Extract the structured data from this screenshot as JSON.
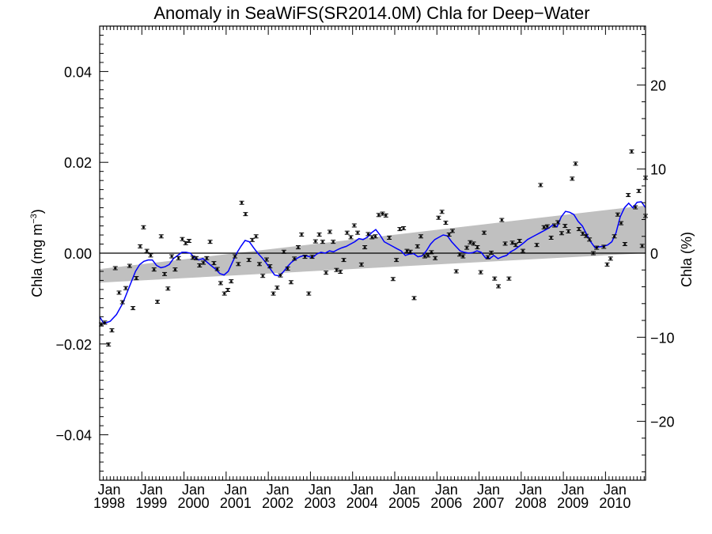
{
  "chart_data": {
    "type": "scatter",
    "title": "Anomaly in SeaWiFS(SR2014.0M) Chla for Deep−Water",
    "ylabel_left": "Chla (mg m",
    "ylabel_left_sup": "−3",
    "ylabel_left_close": ")",
    "ylabel_right": "Chla (%)",
    "xlim": [
      1998.0,
      2010.95
    ],
    "ylim": [
      -0.05,
      0.05
    ],
    "ylim_right": [
      -27,
      27
    ],
    "grid": false,
    "legend": "none",
    "x_ticks": [
      {
        "value": 1998.0,
        "month": "Jan",
        "year": "1998"
      },
      {
        "value": 1999.0,
        "month": "Jan",
        "year": "1999"
      },
      {
        "value": 2000.0,
        "month": "Jan",
        "year": "2000"
      },
      {
        "value": 2001.0,
        "month": "Jan",
        "year": "2001"
      },
      {
        "value": 2002.0,
        "month": "Jan",
        "year": "2002"
      },
      {
        "value": 2003.0,
        "month": "Jan",
        "year": "2003"
      },
      {
        "value": 2004.0,
        "month": "Jan",
        "year": "2004"
      },
      {
        "value": 2005.0,
        "month": "Jan",
        "year": "2005"
      },
      {
        "value": 2006.0,
        "month": "Jan",
        "year": "2006"
      },
      {
        "value": 2007.0,
        "month": "Jan",
        "year": "2007"
      },
      {
        "value": 2008.0,
        "month": "Jan",
        "year": "2008"
      },
      {
        "value": 2009.0,
        "month": "Jan",
        "year": "2009"
      },
      {
        "value": 2010.0,
        "month": "Jan",
        "year": "2010"
      }
    ],
    "y_ticks_left": [
      {
        "value": 0.04,
        "label": "0.04"
      },
      {
        "value": 0.02,
        "label": "0.02"
      },
      {
        "value": 0.0,
        "label": "0.00"
      },
      {
        "value": -0.02,
        "label": "−0.02"
      },
      {
        "value": -0.04,
        "label": "−0.04"
      }
    ],
    "y_ticks_right": [
      {
        "value": 20,
        "label": "20"
      },
      {
        "value": 10,
        "label": "10"
      },
      {
        "value": 0,
        "label": "0"
      },
      {
        "value": -10,
        "label": "−10"
      },
      {
        "value": -20,
        "label": "−20"
      }
    ],
    "trend_band": {
      "color": "#c0c0c0",
      "start": {
        "x": 1998.0,
        "low": -0.0065,
        "high": -0.0035
      },
      "end": {
        "x": 2010.95,
        "low": 0.0,
        "high": 0.0105
      }
    },
    "zero_line": 0.0,
    "colors": {
      "points": "#000000",
      "smoothed": "#0000ff",
      "band": "#c0c0c0"
    },
    "monthly_anomaly": [
      {
        "x": 1998.04,
        "y": -0.0157
      },
      {
        "x": 1998.12,
        "y": -0.0153
      },
      {
        "x": 1998.21,
        "y": -0.0201
      },
      {
        "x": 1998.29,
        "y": -0.017
      },
      {
        "x": 1998.37,
        "y": -0.0033
      },
      {
        "x": 1998.46,
        "y": -0.0087
      },
      {
        "x": 1998.54,
        "y": -0.0108
      },
      {
        "x": 1998.62,
        "y": -0.0077
      },
      {
        "x": 1998.71,
        "y": -0.0028
      },
      {
        "x": 1998.79,
        "y": -0.0121
      },
      {
        "x": 1998.87,
        "y": -0.0055
      },
      {
        "x": 1998.96,
        "y": 0.0015
      },
      {
        "x": 1999.04,
        "y": 0.0057
      },
      {
        "x": 1999.12,
        "y": 0.0005
      },
      {
        "x": 1999.21,
        "y": -0.0005
      },
      {
        "x": 1999.29,
        "y": -0.0036
      },
      {
        "x": 1999.37,
        "y": -0.0107
      },
      {
        "x": 1999.46,
        "y": 0.0037
      },
      {
        "x": 1999.54,
        "y": -0.0046
      },
      {
        "x": 1999.62,
        "y": -0.0078
      },
      {
        "x": 1999.71,
        "y": -0.0007
      },
      {
        "x": 1999.79,
        "y": -0.0036
      },
      {
        "x": 1999.87,
        "y": -0.0011
      },
      {
        "x": 1999.96,
        "y": 0.0031
      },
      {
        "x": 2000.04,
        "y": 0.0022
      },
      {
        "x": 2000.12,
        "y": 0.0027
      },
      {
        "x": 2000.21,
        "y": -0.001
      },
      {
        "x": 2000.29,
        "y": -0.0011
      },
      {
        "x": 2000.37,
        "y": -0.0027
      },
      {
        "x": 2000.46,
        "y": -0.0021
      },
      {
        "x": 2000.54,
        "y": -0.0011
      },
      {
        "x": 2000.62,
        "y": 0.0025
      },
      {
        "x": 2000.71,
        "y": -0.0022
      },
      {
        "x": 2000.79,
        "y": -0.0035
      },
      {
        "x": 2000.87,
        "y": -0.0066
      },
      {
        "x": 2000.96,
        "y": -0.0089
      },
      {
        "x": 2001.04,
        "y": -0.0081
      },
      {
        "x": 2001.12,
        "y": -0.0062
      },
      {
        "x": 2001.21,
        "y": -0.0007
      },
      {
        "x": 2001.29,
        "y": -0.0024
      },
      {
        "x": 2001.37,
        "y": 0.0111
      },
      {
        "x": 2001.46,
        "y": 0.0086
      },
      {
        "x": 2001.54,
        "y": -0.0015
      },
      {
        "x": 2001.62,
        "y": 0.0029
      },
      {
        "x": 2001.71,
        "y": 0.0037
      },
      {
        "x": 2001.79,
        "y": -0.0024
      },
      {
        "x": 2001.87,
        "y": -0.005
      },
      {
        "x": 2001.96,
        "y": -0.0014
      },
      {
        "x": 2002.04,
        "y": -0.0029
      },
      {
        "x": 2002.12,
        "y": -0.0089
      },
      {
        "x": 2002.21,
        "y": -0.0076
      },
      {
        "x": 2002.29,
        "y": -0.0049
      },
      {
        "x": 2002.37,
        "y": 0.0003
      },
      {
        "x": 2002.46,
        "y": -0.0034
      },
      {
        "x": 2002.54,
        "y": -0.0064
      },
      {
        "x": 2002.62,
        "y": -0.0012
      },
      {
        "x": 2002.71,
        "y": 0.0013
      },
      {
        "x": 2002.79,
        "y": 0.0041
      },
      {
        "x": 2002.87,
        "y": -0.0008
      },
      {
        "x": 2002.96,
        "y": -0.0089
      },
      {
        "x": 2003.04,
        "y": -0.0008
      },
      {
        "x": 2003.12,
        "y": 0.0026
      },
      {
        "x": 2003.21,
        "y": 0.0041
      },
      {
        "x": 2003.29,
        "y": 0.0025
      },
      {
        "x": 2003.37,
        "y": -0.0043
      },
      {
        "x": 2003.46,
        "y": 0.0047
      },
      {
        "x": 2003.54,
        "y": 0.0025
      },
      {
        "x": 2003.62,
        "y": -0.0037
      },
      {
        "x": 2003.71,
        "y": -0.0041
      },
      {
        "x": 2003.79,
        "y": -0.0015
      },
      {
        "x": 2003.87,
        "y": 0.0045
      },
      {
        "x": 2003.96,
        "y": 0.0035
      },
      {
        "x": 2004.04,
        "y": 0.0061
      },
      {
        "x": 2004.12,
        "y": 0.0045
      },
      {
        "x": 2004.21,
        "y": -0.0025
      },
      {
        "x": 2004.29,
        "y": 0.0013
      },
      {
        "x": 2004.37,
        "y": 0.0042
      },
      {
        "x": 2004.46,
        "y": 0.0035
      },
      {
        "x": 2004.54,
        "y": 0.0037
      },
      {
        "x": 2004.62,
        "y": 0.0084
      },
      {
        "x": 2004.71,
        "y": 0.0087
      },
      {
        "x": 2004.79,
        "y": 0.0083
      },
      {
        "x": 2004.87,
        "y": 0.0034
      },
      {
        "x": 2004.96,
        "y": -0.0057
      },
      {
        "x": 2005.04,
        "y": -0.0015
      },
      {
        "x": 2005.12,
        "y": 0.0053
      },
      {
        "x": 2005.21,
        "y": 0.0055
      },
      {
        "x": 2005.29,
        "y": 0.0005
      },
      {
        "x": 2005.37,
        "y": 0.0003
      },
      {
        "x": 2005.46,
        "y": -0.0099
      },
      {
        "x": 2005.54,
        "y": 0.0015
      },
      {
        "x": 2005.62,
        "y": 0.0037
      },
      {
        "x": 2005.71,
        "y": -0.0007
      },
      {
        "x": 2005.79,
        "y": -0.0005
      },
      {
        "x": 2005.87,
        "y": 0.0002
      },
      {
        "x": 2005.96,
        "y": -0.0011
      },
      {
        "x": 2006.04,
        "y": 0.0078
      },
      {
        "x": 2006.12,
        "y": 0.0091
      },
      {
        "x": 2006.21,
        "y": 0.0067
      },
      {
        "x": 2006.29,
        "y": 0.0041
      },
      {
        "x": 2006.37,
        "y": 0.0049
      },
      {
        "x": 2006.46,
        "y": -0.004
      },
      {
        "x": 2006.54,
        "y": -0.0003
      },
      {
        "x": 2006.62,
        "y": -0.0007
      },
      {
        "x": 2006.71,
        "y": 0.0012
      },
      {
        "x": 2006.79,
        "y": 0.0024
      },
      {
        "x": 2006.87,
        "y": 0.0021
      },
      {
        "x": 2006.96,
        "y": 0.0013
      },
      {
        "x": 2007.04,
        "y": -0.0042
      },
      {
        "x": 2007.12,
        "y": 0.0045
      },
      {
        "x": 2007.21,
        "y": -0.0009
      },
      {
        "x": 2007.29,
        "y": 0.0001
      },
      {
        "x": 2007.37,
        "y": -0.0056
      },
      {
        "x": 2007.46,
        "y": -0.0073
      },
      {
        "x": 2007.54,
        "y": 0.0073
      },
      {
        "x": 2007.62,
        "y": 0.0021
      },
      {
        "x": 2007.71,
        "y": -0.0056
      },
      {
        "x": 2007.79,
        "y": 0.0023
      },
      {
        "x": 2007.87,
        "y": 0.0018
      },
      {
        "x": 2007.96,
        "y": 0.0027
      },
      {
        "x": 2008.04,
        "y": 0.0005
      },
      {
        "x": 2008.37,
        "y": 0.0018
      },
      {
        "x": 2008.46,
        "y": 0.015
      },
      {
        "x": 2008.54,
        "y": 0.0057
      },
      {
        "x": 2008.62,
        "y": 0.0059
      },
      {
        "x": 2008.71,
        "y": 0.0034
      },
      {
        "x": 2008.79,
        "y": 0.0061
      },
      {
        "x": 2008.87,
        "y": 0.0068
      },
      {
        "x": 2008.96,
        "y": 0.0044
      },
      {
        "x": 2009.04,
        "y": 0.006
      },
      {
        "x": 2009.12,
        "y": 0.0048
      },
      {
        "x": 2009.21,
        "y": 0.0164
      },
      {
        "x": 2009.29,
        "y": 0.0197
      },
      {
        "x": 2009.37,
        "y": 0.0053
      },
      {
        "x": 2009.46,
        "y": 0.0043
      },
      {
        "x": 2009.54,
        "y": 0.0038
      },
      {
        "x": 2009.62,
        "y": 0.003
      },
      {
        "x": 2009.71,
        "y": 0.0
      },
      {
        "x": 2009.79,
        "y": 0.0012
      },
      {
        "x": 2009.96,
        "y": 0.0014
      },
      {
        "x": 2010.04,
        "y": -0.0025
      },
      {
        "x": 2010.12,
        "y": -0.0012
      },
      {
        "x": 2010.21,
        "y": 0.0037
      },
      {
        "x": 2010.29,
        "y": 0.0085
      },
      {
        "x": 2010.37,
        "y": 0.0066
      },
      {
        "x": 2010.46,
        "y": 0.002
      },
      {
        "x": 2010.54,
        "y": 0.0128
      },
      {
        "x": 2010.62,
        "y": 0.0224
      },
      {
        "x": 2010.71,
        "y": 0.0101
      },
      {
        "x": 2010.79,
        "y": 0.0137
      },
      {
        "x": 2010.87,
        "y": 0.0016
      },
      {
        "x": 2010.96,
        "y": 0.0082
      },
      {
        "x": 2011.04,
        "y": 0.0166
      }
    ],
    "smoothed": [
      {
        "x": 1998.0,
        "y": -0.014
      },
      {
        "x": 1998.1,
        "y": -0.0155
      },
      {
        "x": 1998.25,
        "y": -0.015
      },
      {
        "x": 1998.4,
        "y": -0.0135
      },
      {
        "x": 1998.55,
        "y": -0.011
      },
      {
        "x": 1998.7,
        "y": -0.0075
      },
      {
        "x": 1998.85,
        "y": -0.004
      },
      {
        "x": 1998.95,
        "y": -0.0025
      },
      {
        "x": 1999.05,
        "y": -0.0018
      },
      {
        "x": 1999.15,
        "y": -0.0015
      },
      {
        "x": 1999.25,
        "y": -0.0015
      },
      {
        "x": 1999.35,
        "y": -0.0027
      },
      {
        "x": 1999.45,
        "y": -0.0032
      },
      {
        "x": 1999.55,
        "y": -0.003
      },
      {
        "x": 1999.65,
        "y": -0.0025
      },
      {
        "x": 1999.75,
        "y": -0.0012
      },
      {
        "x": 1999.85,
        "y": -0.0005
      },
      {
        "x": 1999.95,
        "y": 0.0002
      },
      {
        "x": 2000.05,
        "y": 0.0002
      },
      {
        "x": 2000.15,
        "y": 0.0
      },
      {
        "x": 2000.25,
        "y": -0.001
      },
      {
        "x": 2000.35,
        "y": -0.0015
      },
      {
        "x": 2000.45,
        "y": -0.0012
      },
      {
        "x": 2000.55,
        "y": -0.002
      },
      {
        "x": 2000.65,
        "y": -0.0028
      },
      {
        "x": 2000.75,
        "y": -0.0035
      },
      {
        "x": 2000.85,
        "y": -0.0045
      },
      {
        "x": 2000.95,
        "y": -0.0048
      },
      {
        "x": 2001.05,
        "y": -0.004
      },
      {
        "x": 2001.15,
        "y": -0.002
      },
      {
        "x": 2001.25,
        "y": 0.0
      },
      {
        "x": 2001.35,
        "y": 0.0015
      },
      {
        "x": 2001.45,
        "y": 0.0028
      },
      {
        "x": 2001.55,
        "y": 0.0025
      },
      {
        "x": 2001.65,
        "y": 0.0012
      },
      {
        "x": 2001.75,
        "y": 0.0
      },
      {
        "x": 2001.85,
        "y": -0.001
      },
      {
        "x": 2001.95,
        "y": -0.0022
      },
      {
        "x": 2002.05,
        "y": -0.0035
      },
      {
        "x": 2002.15,
        "y": -0.0048
      },
      {
        "x": 2002.25,
        "y": -0.005
      },
      {
        "x": 2002.35,
        "y": -0.0042
      },
      {
        "x": 2002.45,
        "y": -0.003
      },
      {
        "x": 2002.55,
        "y": -0.002
      },
      {
        "x": 2002.65,
        "y": -0.0013
      },
      {
        "x": 2002.75,
        "y": -0.0008
      },
      {
        "x": 2002.85,
        "y": -0.0005
      },
      {
        "x": 2002.95,
        "y": -0.0007
      },
      {
        "x": 2003.05,
        "y": -0.001
      },
      {
        "x": 2003.15,
        "y": -0.0002
      },
      {
        "x": 2003.25,
        "y": 0.0002
      },
      {
        "x": 2003.35,
        "y": 0.0
      },
      {
        "x": 2003.45,
        "y": 0.0005
      },
      {
        "x": 2003.55,
        "y": 0.0003
      },
      {
        "x": 2003.65,
        "y": 0.0008
      },
      {
        "x": 2003.75,
        "y": 0.0012
      },
      {
        "x": 2003.85,
        "y": 0.0015
      },
      {
        "x": 2003.95,
        "y": 0.002
      },
      {
        "x": 2004.05,
        "y": 0.0025
      },
      {
        "x": 2004.15,
        "y": 0.0032
      },
      {
        "x": 2004.25,
        "y": 0.003
      },
      {
        "x": 2004.35,
        "y": 0.0035
      },
      {
        "x": 2004.45,
        "y": 0.0045
      },
      {
        "x": 2004.55,
        "y": 0.0052
      },
      {
        "x": 2004.65,
        "y": 0.004
      },
      {
        "x": 2004.75,
        "y": 0.0025
      },
      {
        "x": 2004.85,
        "y": 0.002
      },
      {
        "x": 2004.95,
        "y": 0.0015
      },
      {
        "x": 2005.05,
        "y": 0.001
      },
      {
        "x": 2005.15,
        "y": 0.0005
      },
      {
        "x": 2005.25,
        "y": -0.0005
      },
      {
        "x": 2005.35,
        "y": -0.0002
      },
      {
        "x": 2005.45,
        "y": -0.0001
      },
      {
        "x": 2005.55,
        "y": -0.0008
      },
      {
        "x": 2005.65,
        "y": -0.0006
      },
      {
        "x": 2005.75,
        "y": 0.0005
      },
      {
        "x": 2005.85,
        "y": 0.002
      },
      {
        "x": 2005.95,
        "y": 0.003
      },
      {
        "x": 2006.05,
        "y": 0.0035
      },
      {
        "x": 2006.15,
        "y": 0.004
      },
      {
        "x": 2006.25,
        "y": 0.0038
      },
      {
        "x": 2006.35,
        "y": 0.0025
      },
      {
        "x": 2006.45,
        "y": 0.0015
      },
      {
        "x": 2006.55,
        "y": 0.0005
      },
      {
        "x": 2006.65,
        "y": 0.0002
      },
      {
        "x": 2006.75,
        "y": 0.0
      },
      {
        "x": 2006.85,
        "y": 0.0001
      },
      {
        "x": 2006.95,
        "y": 0.0005
      },
      {
        "x": 2007.05,
        "y": 0.0002
      },
      {
        "x": 2007.15,
        "y": -0.001
      },
      {
        "x": 2007.25,
        "y": -0.0012
      },
      {
        "x": 2007.35,
        "y": -0.0005
      },
      {
        "x": 2007.45,
        "y": -0.0012
      },
      {
        "x": 2007.55,
        "y": -0.0008
      },
      {
        "x": 2007.65,
        "y": -0.0005
      },
      {
        "x": 2007.75,
        "y": 0.0003
      },
      {
        "x": 2007.85,
        "y": 0.0008
      },
      {
        "x": 2007.95,
        "y": 0.0015
      },
      {
        "x": 2008.05,
        "y": 0.0022
      },
      {
        "x": 2008.15,
        "y": 0.003
      },
      {
        "x": 2008.25,
        "y": 0.0035
      },
      {
        "x": 2008.35,
        "y": 0.004
      },
      {
        "x": 2008.45,
        "y": 0.0045
      },
      {
        "x": 2008.55,
        "y": 0.005
      },
      {
        "x": 2008.65,
        "y": 0.0055
      },
      {
        "x": 2008.75,
        "y": 0.0062
      },
      {
        "x": 2008.85,
        "y": 0.0058
      },
      {
        "x": 2008.95,
        "y": 0.008
      },
      {
        "x": 2009.05,
        "y": 0.0092
      },
      {
        "x": 2009.15,
        "y": 0.009
      },
      {
        "x": 2009.25,
        "y": 0.0085
      },
      {
        "x": 2009.35,
        "y": 0.007
      },
      {
        "x": 2009.45,
        "y": 0.006
      },
      {
        "x": 2009.55,
        "y": 0.0042
      },
      {
        "x": 2009.65,
        "y": 0.0025
      },
      {
        "x": 2009.75,
        "y": 0.0012
      },
      {
        "x": 2009.85,
        "y": 0.0014
      },
      {
        "x": 2009.95,
        "y": 0.0015
      },
      {
        "x": 2010.05,
        "y": 0.0018
      },
      {
        "x": 2010.15,
        "y": 0.0025
      },
      {
        "x": 2010.25,
        "y": 0.0045
      },
      {
        "x": 2010.35,
        "y": 0.008
      },
      {
        "x": 2010.45,
        "y": 0.01
      },
      {
        "x": 2010.55,
        "y": 0.011
      },
      {
        "x": 2010.65,
        "y": 0.01
      },
      {
        "x": 2010.75,
        "y": 0.0112
      },
      {
        "x": 2010.85,
        "y": 0.0113
      },
      {
        "x": 2010.95,
        "y": 0.01
      }
    ]
  }
}
